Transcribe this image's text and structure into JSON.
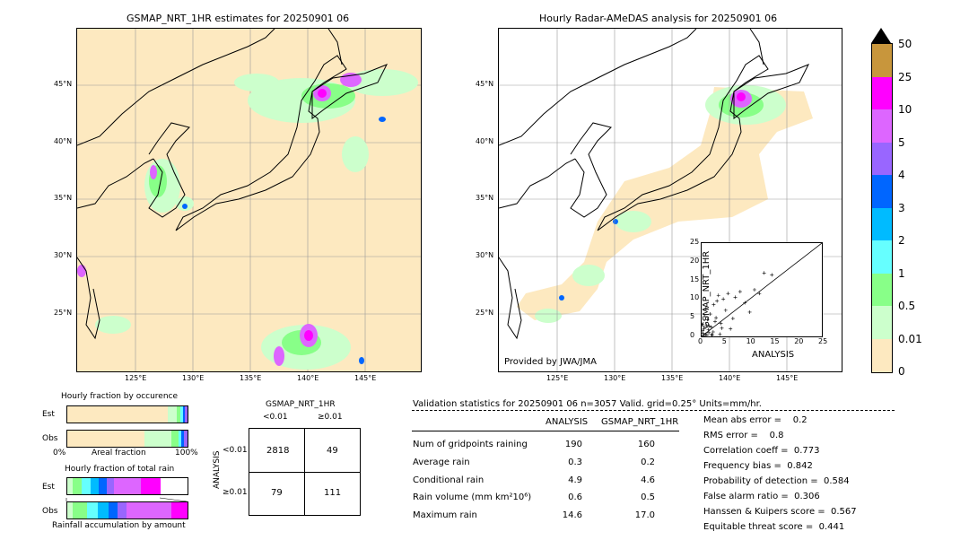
{
  "left_map": {
    "title": "GSMAP_NRT_1HR estimates for 20250901 06",
    "lat_labels": [
      "45°N",
      "40°N",
      "35°N",
      "30°N",
      "25°N"
    ],
    "lon_labels": [
      "125°E",
      "130°E",
      "135°E",
      "140°E",
      "145°E"
    ]
  },
  "right_map": {
    "title": "Hourly Radar-AMeDAS analysis for 20250901 06",
    "lat_labels": [
      "45°N",
      "40°N",
      "35°N",
      "30°N",
      "25°N"
    ],
    "lon_labels": [
      "125°E",
      "130°E",
      "135°E",
      "140°E",
      "145°E"
    ],
    "credit": "Provided by JWA/JMA"
  },
  "colorbar": {
    "ticks": [
      "50",
      "25",
      "10",
      "5",
      "4",
      "3",
      "2",
      "1",
      "0.5",
      "0.01",
      "0"
    ],
    "colors": [
      "#c8963c",
      "#ff00ff",
      "#dd66ff",
      "#9966ff",
      "#0066ff",
      "#00bbff",
      "#66ffff",
      "#88ff88",
      "#ccffcc",
      "#fde9c0"
    ],
    "extend_color": "#000000"
  },
  "scatter": {
    "ylabel": "GSMAP_NRT_1HR",
    "xlabel": "ANALYSIS",
    "ticks": [
      "0",
      "5",
      "10",
      "15",
      "20",
      "25"
    ]
  },
  "occurrence": {
    "title": "Hourly fraction by occurence",
    "est_label": "Est",
    "obs_label": "Obs",
    "axis_left": "0%",
    "axis_mid": "Areal fraction",
    "axis_right": "100%"
  },
  "amount": {
    "title": "Hourly fraction of total rain",
    "est_label": "Est",
    "obs_label": "Obs",
    "footer": "Rainfall accumulation by amount"
  },
  "contingency": {
    "title": "GSMAP_NRT_1HR",
    "col_lt": "<0.01",
    "col_ge": "≥0.01",
    "side_label": "ANALYSIS",
    "row_lt": "<0.01",
    "row_ge": "≥0.01",
    "a": "2818",
    "b": "49",
    "c": "79",
    "d": "111"
  },
  "validation": {
    "header": "Validation statistics for 20250901 06  n=3057 Valid. grid=0.25° Units=mm/hr.",
    "col_analysis": "ANALYSIS",
    "col_gsmap": "GSMAP_NRT_1HR",
    "rows": [
      {
        "label": "Num of gridpoints raining",
        "analysis": "190",
        "gsmap": "160"
      },
      {
        "label": "Average rain",
        "analysis": "0.3",
        "gsmap": "0.2"
      },
      {
        "label": "Conditional rain",
        "analysis": "4.9",
        "gsmap": "4.6"
      },
      {
        "label": "Rain volume (mm km²10⁶)",
        "analysis": "0.6",
        "gsmap": "0.5"
      },
      {
        "label": "Maximum rain",
        "analysis": "14.6",
        "gsmap": "17.0"
      }
    ],
    "scores": [
      "Mean abs error =    0.2",
      "RMS error =    0.8",
      "Correlation coeff =  0.773",
      "Frequency bias =  0.842",
      "Probability of detection =  0.584",
      "False alarm ratio =  0.306",
      "Hanssen & Kuipers score =  0.567",
      "Equitable threat score =  0.441"
    ]
  },
  "chart_data": [
    {
      "type": "scatter",
      "title": "",
      "xlabel": "ANALYSIS",
      "ylabel": "GSMAP_NRT_1HR",
      "xlim": [
        0,
        25
      ],
      "ylim": [
        0,
        25
      ],
      "x": [
        0.2,
        0.5,
        0.8,
        1.0,
        1.2,
        1.5,
        1.8,
        2.0,
        2.2,
        2.5,
        3.0,
        3.2,
        3.5,
        4.0,
        4.5,
        5.0,
        5.5,
        6.0,
        7.0,
        8.0,
        9.0,
        10.0,
        11.0,
        12.0,
        13.0,
        14.6,
        0.3,
        0.6,
        1.1,
        1.6,
        2.4,
        2.8,
        3.8,
        0.1,
        0.4,
        0.9,
        1.4,
        2.1,
        4.2,
        6.5
      ],
      "y": [
        1.5,
        2.0,
        0.5,
        3.0,
        4.5,
        1.0,
        6.0,
        2.5,
        0.3,
        8.5,
        5.0,
        9.5,
        11.0,
        3.5,
        10.0,
        7.0,
        11.5,
        2.0,
        10.5,
        12.0,
        9.0,
        6.5,
        12.5,
        11.5,
        17.0,
        16.5,
        0.8,
        5.5,
        0.4,
        2.8,
        1.2,
        4.0,
        0.6,
        3.2,
        0.2,
        7.5,
        1.8,
        0.5,
        2.2,
        4.8
      ]
    }
  ]
}
